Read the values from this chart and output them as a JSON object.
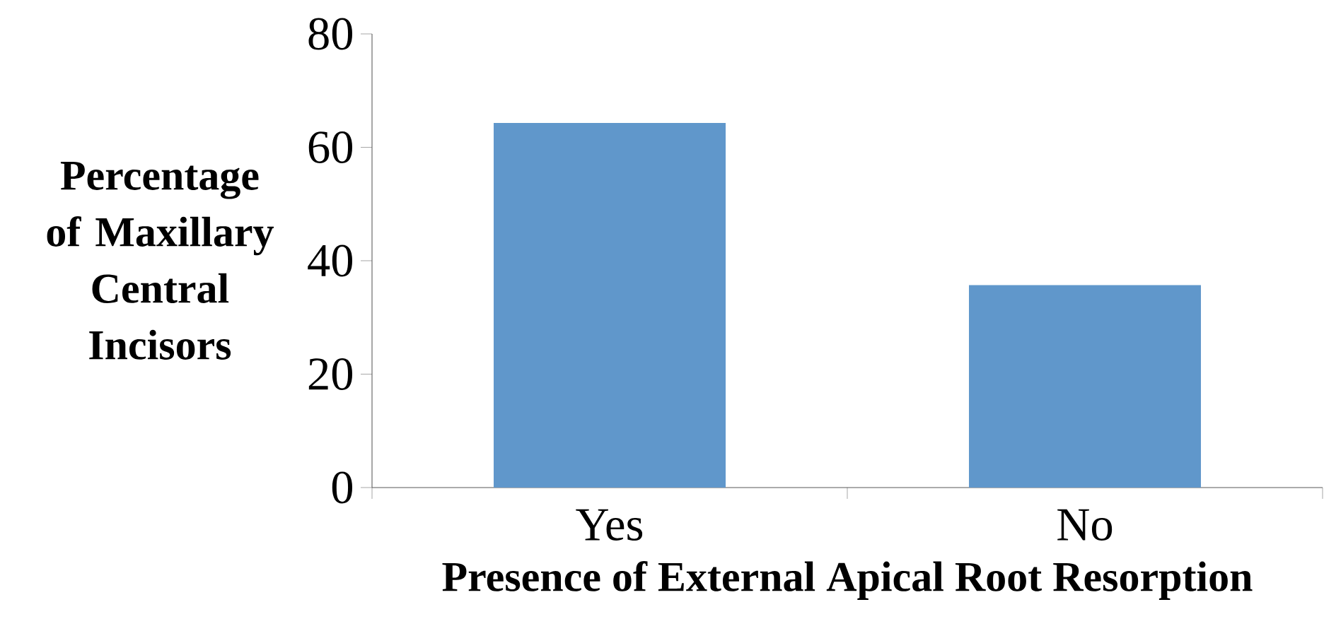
{
  "chart_data": {
    "type": "bar",
    "xlabel": "Presence of External Apical Root Resorption",
    "ylabel": "Percentage of Maxillary Central Incisors",
    "categories": [
      "Yes",
      "No"
    ],
    "values": [
      64.3,
      35.7
    ],
    "color": "#6097cb",
    "ylim": [
      0,
      80
    ],
    "yticks": [
      0,
      20,
      40,
      60,
      80
    ],
    "grid": false
  }
}
